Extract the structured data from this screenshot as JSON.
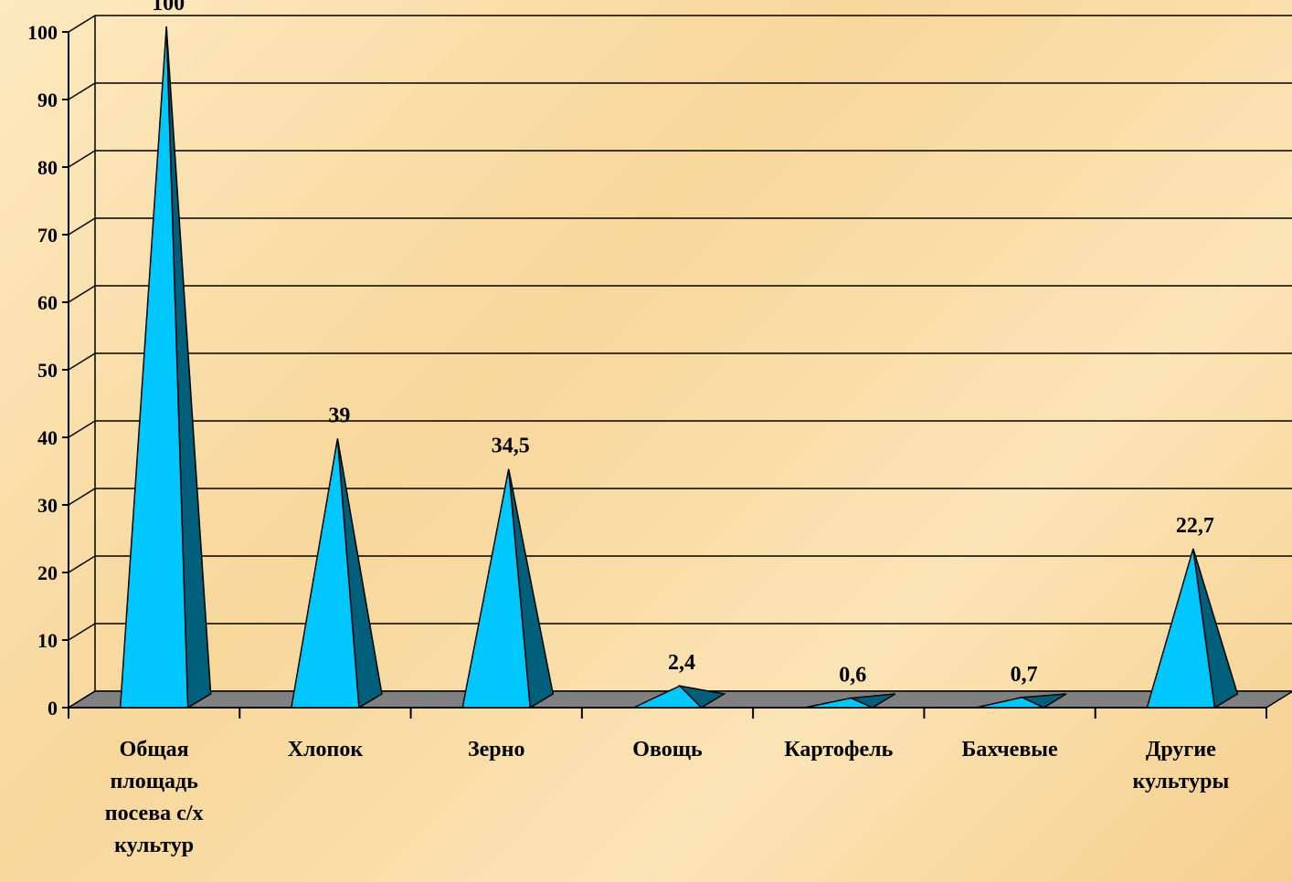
{
  "chart_data": {
    "type": "bar",
    "style": "3d-cone",
    "categories": [
      [
        "Общая",
        "площадь",
        "посева с/х",
        "культур"
      ],
      [
        "Хлопок"
      ],
      [
        "Зерно"
      ],
      [
        "Овощь"
      ],
      [
        "Картофель"
      ],
      [
        "Бахчевые"
      ],
      [
        "Другие",
        "культуры"
      ]
    ],
    "values": [
      100,
      39,
      34.5,
      2.4,
      0.6,
      0.7,
      22.7
    ],
    "value_labels": [
      "100",
      "39",
      "34,5",
      "2,4",
      "0,6",
      "0,7",
      "22,7"
    ],
    "ylim": [
      0,
      100
    ],
    "yticks": [
      0,
      10,
      20,
      30,
      40,
      50,
      60,
      70,
      80,
      90,
      100
    ],
    "grid": true,
    "legend": "none",
    "title": "",
    "xlabel": "",
    "ylabel": ""
  },
  "colors": {
    "cone_front": "#00c8ff",
    "cone_side": "#005f7a",
    "floor": "#808080",
    "grid": "#000000",
    "background": "#f7d79c"
  }
}
